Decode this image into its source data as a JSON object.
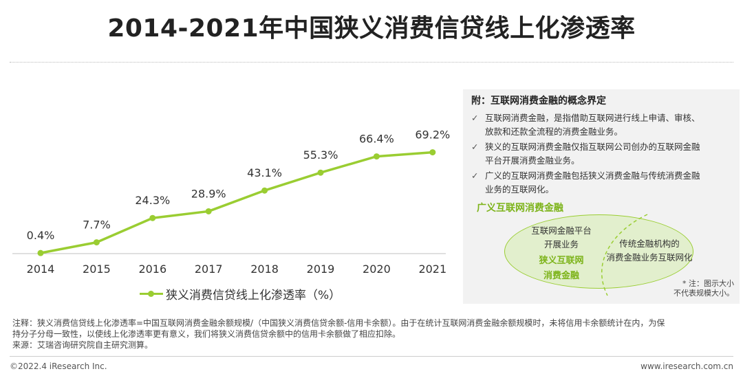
{
  "title": "2014-2021年中国狭义消费信贷线上化渗透率",
  "chart_data": {
    "type": "line",
    "title": "2014-2021年中国狭义消费信贷线上化渗透率",
    "categories": [
      "2014",
      "2015",
      "2016",
      "2017",
      "2018",
      "2019",
      "2020",
      "2021"
    ],
    "series": [
      {
        "name": "狭义消费信贷线上化渗透率（%）",
        "values": [
          0.4,
          7.7,
          24.3,
          28.9,
          43.1,
          55.3,
          66.4,
          69.2
        ]
      }
    ],
    "data_labels": [
      "0.4%",
      "7.7%",
      "24.3%",
      "28.9%",
      "43.1%",
      "55.3%",
      "66.4%",
      "69.2%"
    ],
    "ylim": [
      0,
      75
    ],
    "xlabel": "",
    "ylabel": "",
    "grid": false,
    "legend_position": "bottom",
    "color": "#9ACD32"
  },
  "legend": {
    "label": "狭义消费信贷线上化渗透率（%）"
  },
  "sidebar": {
    "title": "附：互联网消费金融的概念界定",
    "check_icon": "✓",
    "items": [
      {
        "line1": "互联网消费金融，是指借助互联网进行线上申请、审核、",
        "line2": "放款和还款全流程的消费金融业务。"
      },
      {
        "line1": "狭义的互联网消费金融仅指互联网公司创办的互联网金融",
        "line2": "平台开展消费金融业务。"
      },
      {
        "line1": "广义的互联网消费金融包括狭义消费金融与传统消费金融",
        "line2": "业务的互联网化。"
      }
    ],
    "venn": {
      "title": "广义互联网消费金融",
      "left_line1": "互联网金融平台",
      "left_line2": "开展业务",
      "left_green1": "狭义互联网",
      "left_green2": "消费金融",
      "right_line1": "传统金融机构的",
      "right_line2": "消费金融业务互联网化",
      "note_line1": "* 注：图示大小",
      "note_line2": "不代表规模大小。"
    }
  },
  "note": {
    "line1": "注释：狭义消费信贷线上化渗透率=中国互联网消费金融余额规模/（中国狭义消费信贷余额-信用卡余额）。由于在统计互联网消费金融余额规模时，未将信用卡余额统计在内，为保",
    "line2": "持分子分母一致性，以使线上化渗透率更有意义，我们将狭义消费信贷余额中的信用卡余额做了相应扣除。",
    "line3": "来源：艾瑞咨询研究院自主研究测算。"
  },
  "footer": {
    "left": "©2022.4 iResearch Inc.",
    "right": "www.iresearch.com.cn"
  }
}
